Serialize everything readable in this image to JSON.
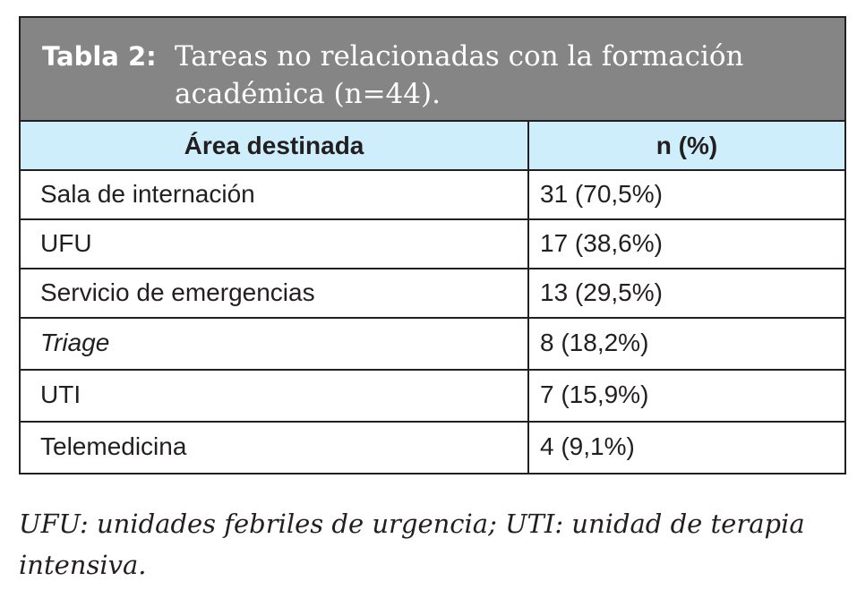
{
  "table": {
    "label": "Tabla 2:",
    "title_line1": "Tareas no relacionadas con la formación",
    "title_line2": "académica (n=44).",
    "columns": [
      "Área destinada",
      "n (%)"
    ],
    "rows": [
      {
        "area": "Sala de internación",
        "value": "31 (70,5%)"
      },
      {
        "area": "UFU",
        "value": "17 (38,6%)"
      },
      {
        "area": "Servicio de emergencias",
        "value": "13 (29,5%)"
      },
      {
        "area": "Triage",
        "value": "8 (18,2%)"
      },
      {
        "area": "UTI",
        "value": "7 (15,9%)"
      },
      {
        "area": "Telemedicina",
        "value": "4 (9,1%)"
      }
    ]
  },
  "footnote": {
    "line1": "UFU: unidades febriles de urgencia; UTI: unidad de terapia",
    "line2": "intensiva."
  },
  "colors": {
    "title_background": "#858585",
    "header_background": "#cdeefa",
    "border": "#231f20"
  }
}
